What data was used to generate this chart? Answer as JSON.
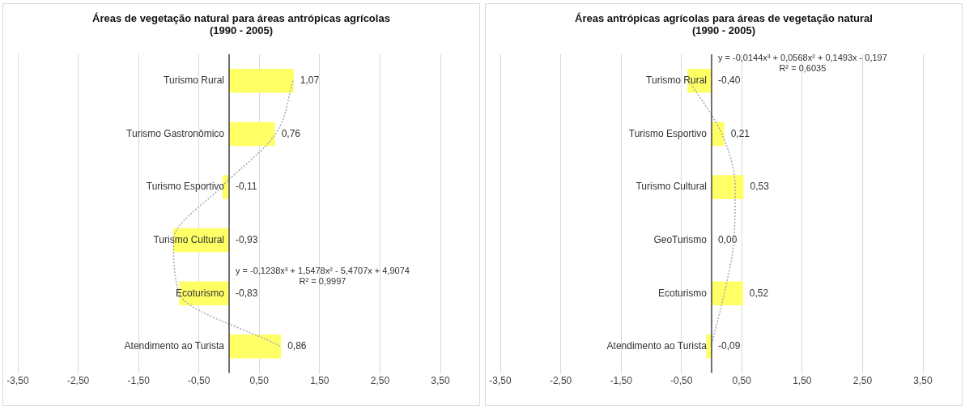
{
  "chart_data": [
    {
      "type": "bar",
      "orientation": "horizontal",
      "title": "Áreas de vegetação natural para áreas antrópicas agrícolas  (1990 - 2005)",
      "categories": [
        "Turismo Rural",
        "Turismo Gastronômico",
        "Turismo Esportivo",
        "Turismo Cultural",
        "Ecoturismo",
        "Atendimento ao Turista"
      ],
      "series": [
        {
          "color": "#ffff66",
          "values": [
            1.07,
            0.76,
            -0.11,
            -0.93,
            -0.83,
            0.86
          ],
          "value_labels": [
            "1,07",
            "0,76",
            "-0,11",
            "-0,93",
            "-0,83",
            "0,86"
          ]
        },
        {
          "type": "line",
          "color": "#a6a6b8",
          "line_style": "dotted",
          "values": [
            1.06,
            0.77,
            -0.13,
            -0.92,
            -0.83,
            0.86
          ]
        }
      ],
      "xlim": [
        -3.5,
        3.5
      ],
      "xticks": [
        {
          "value": -3.5,
          "label": "-3,50"
        },
        {
          "value": -2.5,
          "label": "-2,50"
        },
        {
          "value": -1.5,
          "label": "-1,50"
        },
        {
          "value": -0.5,
          "label": "-0,50"
        },
        {
          "value": 0.5,
          "label": "0,50"
        },
        {
          "value": 1.5,
          "label": "1,50"
        },
        {
          "value": 2.5,
          "label": "2,50"
        },
        {
          "value": 3.5,
          "label": "3,50"
        }
      ],
      "grid": "x",
      "legend": false,
      "annotations": [
        "y = -0,1238x³ + 1,5478x² - 5,4707x + 4,9074",
        "R² = 0,9997"
      ]
    },
    {
      "type": "bar",
      "orientation": "horizontal",
      "title": "Áreas antrópicas agrícolas para áreas de vegetação natural (1990 - 2005)",
      "categories": [
        "Turismo Rural",
        "Turismo Esportivo",
        "Turismo Cultural",
        "GeoTurismo",
        "Ecoturismo",
        "Atendimento ao Turista"
      ],
      "series": [
        {
          "color": "#ffff66",
          "values": [
            -0.4,
            0.21,
            0.53,
            0.0,
            0.52,
            -0.09
          ],
          "value_labels": [
            "-0,40",
            "0,21",
            "0,53",
            "0,00",
            "0,52",
            "-0,09"
          ]
        },
        {
          "type": "line",
          "color": "#a6a6b8",
          "line_style": "dotted",
          "values": [
            -0.37,
            0.17,
            0.39,
            0.37,
            0.21,
            -0.01
          ]
        }
      ],
      "xlim": [
        -3.5,
        3.5
      ],
      "xticks": [
        {
          "value": -3.5,
          "label": "-3,50"
        },
        {
          "value": -2.5,
          "label": "-2,50"
        },
        {
          "value": -1.5,
          "label": "-1,50"
        },
        {
          "value": -0.5,
          "label": "-0,50"
        },
        {
          "value": 0.5,
          "label": "0,50"
        },
        {
          "value": 1.5,
          "label": "1,50"
        },
        {
          "value": 2.5,
          "label": "2,50"
        },
        {
          "value": 3.5,
          "label": "3,50"
        }
      ],
      "grid": "x",
      "legend": false,
      "annotations": [
        "y = -0,0144x³ + 0,0568x² + 0,1493x - 0,197",
        "R² = 0,6035"
      ]
    }
  ]
}
